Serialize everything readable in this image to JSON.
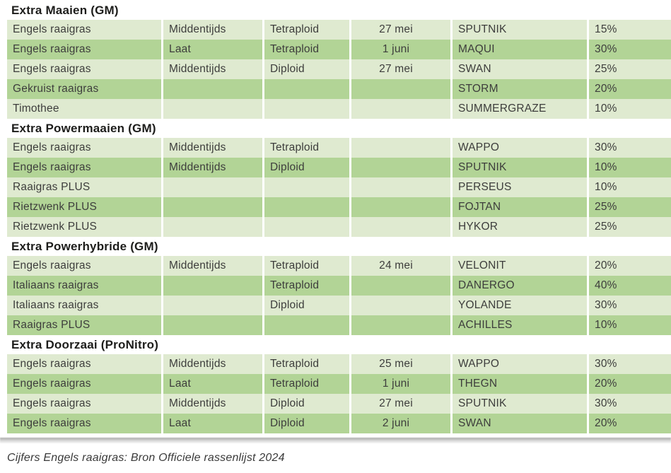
{
  "table": {
    "sections": [
      {
        "title": "Extra Maaien (GM)",
        "rows": [
          [
            "Engels raaigras",
            "Middentijds",
            "Tetraploid",
            "27 mei",
            "SPUTNIK",
            "15%"
          ],
          [
            "Engels raaigras",
            "Laat",
            "Tetraploid",
            "1 juni",
            "MAQUI",
            "30%"
          ],
          [
            "Engels raaigras",
            "Middentijds",
            "Diploid",
            "27 mei",
            "SWAN",
            "25%"
          ],
          [
            "Gekruist raaigras",
            "",
            "",
            "",
            "STORM",
            "20%"
          ],
          [
            "Timothee",
            "",
            "",
            "",
            "SUMMERGRAZE",
            "10%"
          ]
        ]
      },
      {
        "title": "Extra Powermaaien (GM)",
        "rows": [
          [
            "Engels raaigras",
            "Middentijds",
            "Tetraploid",
            "",
            "WAPPO",
            "30%"
          ],
          [
            "Engels raaigras",
            "Middentijds",
            "Diploid",
            "",
            "SPUTNIK",
            "10%"
          ],
          [
            "Raaigras PLUS",
            "",
            "",
            "",
            "PERSEUS",
            "10%"
          ],
          [
            "Rietzwenk PLUS",
            "",
            "",
            "",
            "FOJTAN",
            "25%"
          ],
          [
            "Rietzwenk PLUS",
            "",
            "",
            "",
            "HYKOR",
            "25%"
          ]
        ]
      },
      {
        "title": "Extra Powerhybride (GM)",
        "rows": [
          [
            "Engels raaigras",
            "Middentijds",
            "Tetraploid",
            "24 mei",
            "VELONIT",
            "20%"
          ],
          [
            "Italiaans raaigras",
            "",
            "Tetraploid",
            "",
            "DANERGO",
            "40%"
          ],
          [
            "Italiaans raaigras",
            "",
            "Diploid",
            "",
            "YOLANDE",
            "30%"
          ],
          [
            "Raaigras PLUS",
            "",
            "",
            "",
            "ACHILLES",
            "10%"
          ]
        ]
      },
      {
        "title": "Extra Doorzaai (ProNitro)",
        "rows": [
          [
            "Engels raaigras",
            "Middentijds",
            "Tetraploid",
            "25 mei",
            "WAPPO",
            "30%"
          ],
          [
            "Engels raaigras",
            "Laat",
            "Tetraploid",
            "1 juni",
            "THEGN",
            "20%"
          ],
          [
            "Engels raaigras",
            "Middentijds",
            "Diploid",
            "27 mei",
            "SPUTNIK",
            "30%"
          ],
          [
            "Engels raaigras",
            "Laat",
            "Diploid",
            "2 juni",
            "SWAN",
            "20%"
          ]
        ]
      }
    ]
  },
  "footer": {
    "note": "Cijfers Engels raaigras: Bron Officiele rassenlijst 2024"
  },
  "colors": {
    "row_light": "#dfead0",
    "row_dark": "#b2d496",
    "title_text": "#1d1d1b",
    "cell_text": "#3d3d3c",
    "footer_text": "#3a3a3a"
  }
}
